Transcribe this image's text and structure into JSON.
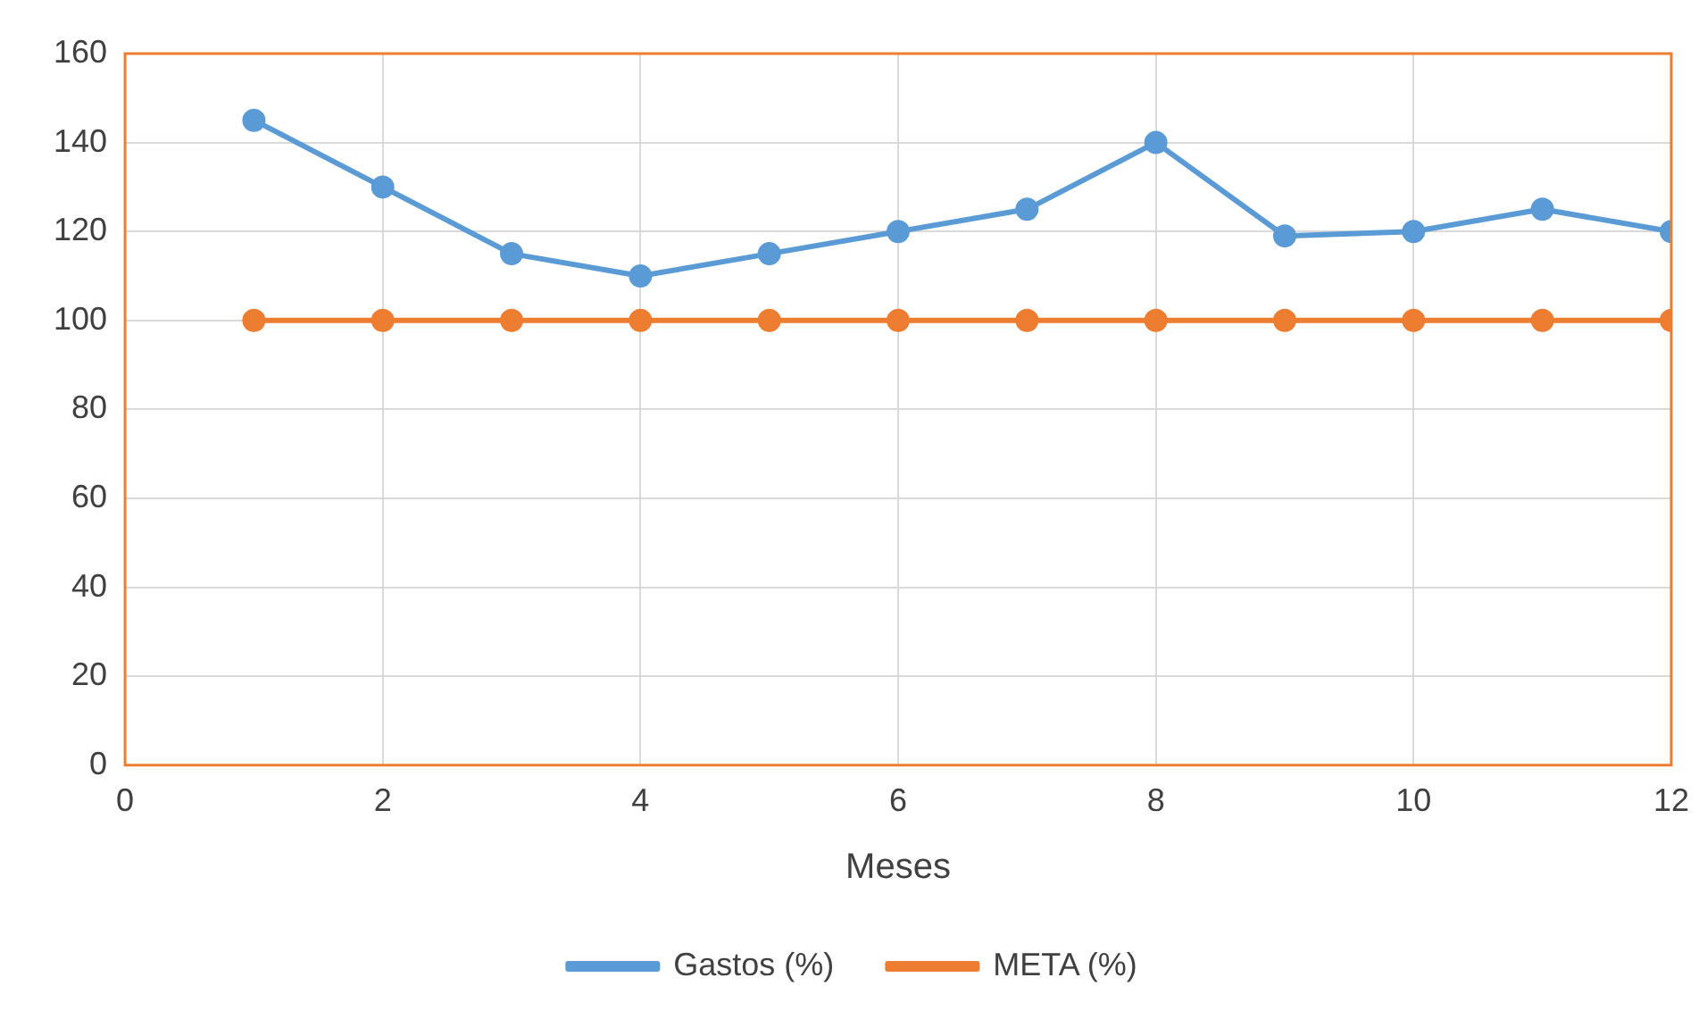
{
  "chart_data": {
    "type": "line",
    "xlabel": "Meses",
    "x": [
      1,
      2,
      3,
      4,
      5,
      6,
      7,
      8,
      9,
      10,
      11,
      12
    ],
    "series": [
      {
        "name": "Gastos (%)",
        "color": "#5b9bd5",
        "values": [
          145,
          130,
          115,
          110,
          115,
          120,
          125,
          140,
          119,
          120,
          125,
          120
        ]
      },
      {
        "name": "META (%)",
        "color": "#ed7d31",
        "values": [
          100,
          100,
          100,
          100,
          100,
          100,
          100,
          100,
          100,
          100,
          100,
          100
        ]
      }
    ],
    "xlim": [
      0,
      12
    ],
    "xticks": [
      0,
      2,
      4,
      6,
      8,
      10,
      12
    ],
    "ylim": [
      0,
      160
    ],
    "yticks": [
      0,
      20,
      40,
      60,
      80,
      100,
      120,
      140,
      160
    ],
    "grid": true,
    "legend": "bottom",
    "marker": "circle",
    "line_style": "solid"
  }
}
